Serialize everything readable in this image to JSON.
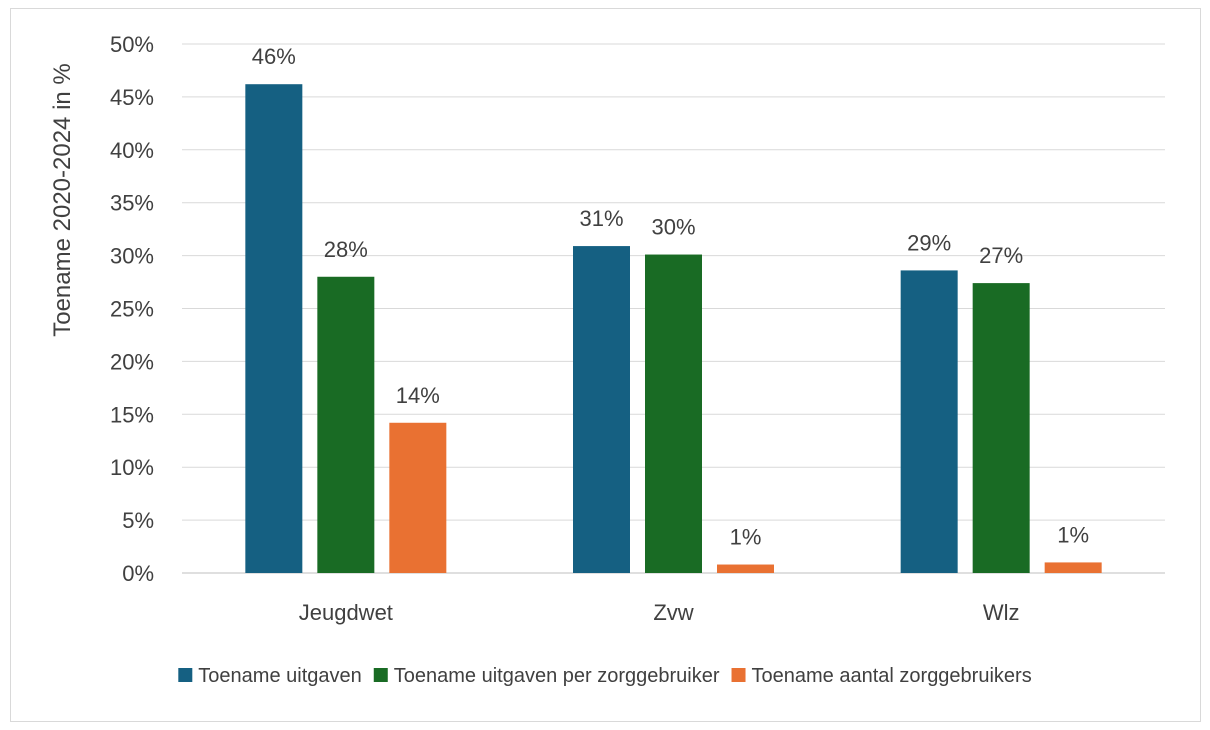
{
  "chart_data": {
    "type": "bar",
    "title": "",
    "xlabel": "",
    "ylabel": "Toename  2020-2024 in %",
    "ylim": [
      0,
      50
    ],
    "yticks": [
      "0%",
      "5%",
      "10%",
      "15%",
      "20%",
      "25%",
      "30%",
      "35%",
      "40%",
      "45%",
      "50%"
    ],
    "grid": true,
    "legend_position": "bottom",
    "categories": [
      "Jeugdwet",
      "Zvw",
      "Wlz"
    ],
    "series": [
      {
        "name": "Toename uitgaven",
        "color": "#156082",
        "values": [
          46.2,
          30.9,
          28.6
        ],
        "labels": [
          "46%",
          "31%",
          "29%"
        ]
      },
      {
        "name": "Toename uitgaven per zorggebruiker",
        "color": "#196B24",
        "values": [
          28.0,
          30.1,
          27.4
        ],
        "labels": [
          "28%",
          "30%",
          "27%"
        ]
      },
      {
        "name": "Toename aantal zorggebruikers",
        "color": "#E97132",
        "values": [
          14.2,
          0.8,
          1.0
        ],
        "labels": [
          "14%",
          "1%",
          "1%"
        ]
      }
    ]
  }
}
